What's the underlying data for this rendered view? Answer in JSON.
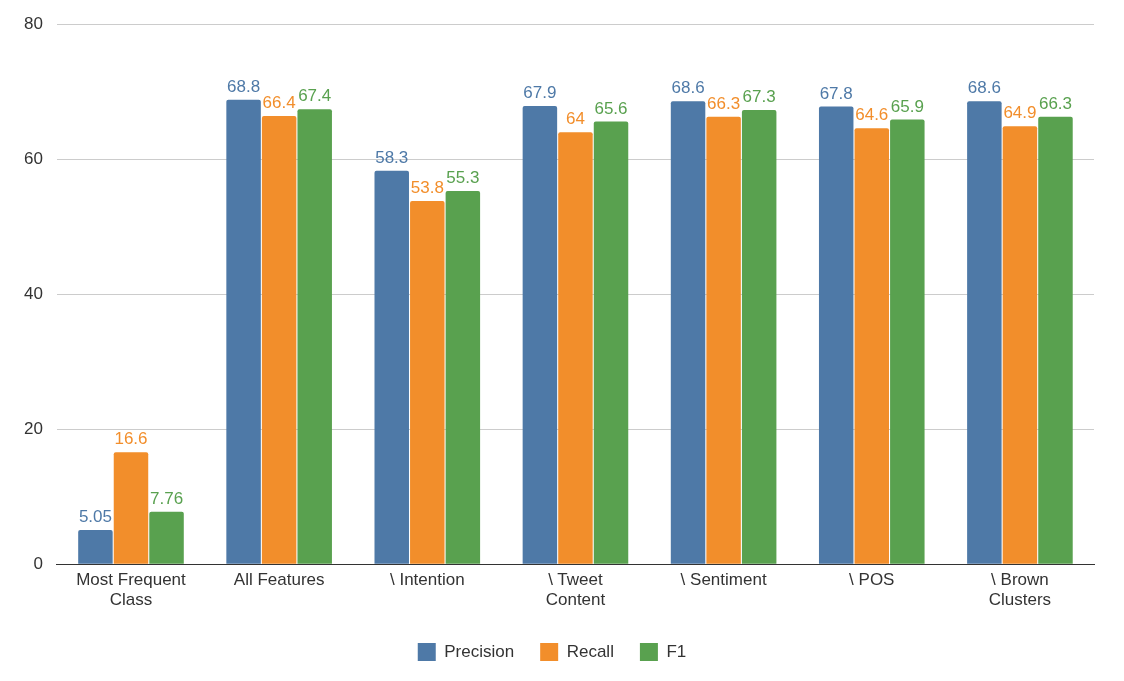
{
  "chart_data": {
    "type": "bar",
    "categories": [
      "Most Frequent Class",
      "All Features",
      "\\ Intention",
      "\\ Tweet Content",
      "\\ Sentiment",
      "\\ POS",
      "\\ Brown Clusters"
    ],
    "series": [
      {
        "name": "Precision",
        "color": "#4e79a7",
        "values": [
          5.05,
          68.8,
          58.3,
          67.9,
          68.6,
          67.8,
          68.6
        ]
      },
      {
        "name": "Recall",
        "color": "#f28e2b",
        "values": [
          16.6,
          66.4,
          53.8,
          64,
          66.3,
          64.6,
          64.9
        ]
      },
      {
        "name": "F1",
        "color": "#59a14f",
        "values": [
          7.76,
          67.4,
          55.3,
          65.6,
          67.3,
          65.9,
          66.3
        ]
      }
    ],
    "ylim": [
      0,
      80
    ],
    "yticks": [
      0,
      20,
      40,
      60,
      80
    ],
    "grid": "y",
    "legend": "bottom",
    "data_labels": true
  }
}
